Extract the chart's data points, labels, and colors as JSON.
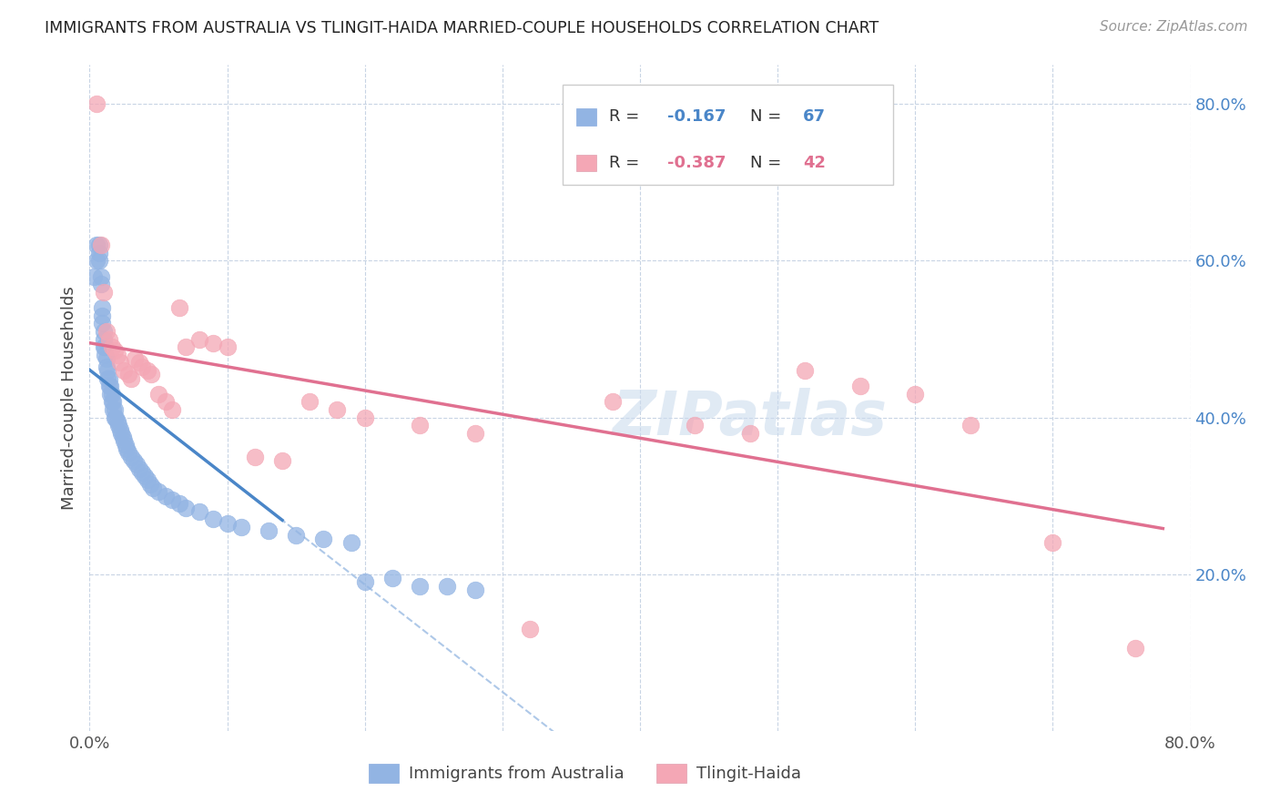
{
  "title": "IMMIGRANTS FROM AUSTRALIA VS TLINGIT-HAIDA MARRIED-COUPLE HOUSEHOLDS CORRELATION CHART",
  "source": "Source: ZipAtlas.com",
  "ylabel": "Married-couple Households",
  "xlim": [
    0.0,
    0.8
  ],
  "ylim": [
    0.0,
    0.85
  ],
  "color_blue": "#92b4e3",
  "color_pink": "#f4a7b5",
  "trendline_blue_color": "#4a86c8",
  "trendline_pink_color": "#e07090",
  "trendline_dashed_color": "#aec8e8",
  "watermark": "ZIPatlas",
  "grid_color": "#c8d4e4",
  "background_color": "#ffffff",
  "blue_x": [
    0.003,
    0.005,
    0.005,
    0.007,
    0.007,
    0.007,
    0.008,
    0.008,
    0.009,
    0.009,
    0.009,
    0.01,
    0.01,
    0.01,
    0.011,
    0.011,
    0.012,
    0.012,
    0.013,
    0.013,
    0.014,
    0.014,
    0.015,
    0.015,
    0.016,
    0.016,
    0.017,
    0.017,
    0.018,
    0.018,
    0.019,
    0.02,
    0.021,
    0.022,
    0.023,
    0.024,
    0.025,
    0.026,
    0.027,
    0.028,
    0.03,
    0.032,
    0.034,
    0.036,
    0.038,
    0.04,
    0.042,
    0.044,
    0.046,
    0.05,
    0.055,
    0.06,
    0.065,
    0.07,
    0.08,
    0.09,
    0.1,
    0.11,
    0.13,
    0.15,
    0.17,
    0.19,
    0.2,
    0.22,
    0.24,
    0.26,
    0.28
  ],
  "blue_y": [
    0.58,
    0.62,
    0.6,
    0.62,
    0.61,
    0.6,
    0.58,
    0.57,
    0.54,
    0.53,
    0.52,
    0.51,
    0.5,
    0.49,
    0.49,
    0.48,
    0.475,
    0.465,
    0.46,
    0.45,
    0.45,
    0.44,
    0.44,
    0.43,
    0.43,
    0.42,
    0.42,
    0.41,
    0.41,
    0.4,
    0.4,
    0.395,
    0.39,
    0.385,
    0.38,
    0.375,
    0.37,
    0.365,
    0.36,
    0.355,
    0.35,
    0.345,
    0.34,
    0.335,
    0.33,
    0.325,
    0.32,
    0.315,
    0.31,
    0.305,
    0.3,
    0.295,
    0.29,
    0.285,
    0.28,
    0.27,
    0.265,
    0.26,
    0.255,
    0.25,
    0.245,
    0.24,
    0.19,
    0.195,
    0.185,
    0.185,
    0.18
  ],
  "pink_x": [
    0.005,
    0.008,
    0.01,
    0.012,
    0.014,
    0.016,
    0.018,
    0.02,
    0.022,
    0.025,
    0.028,
    0.03,
    0.033,
    0.036,
    0.038,
    0.042,
    0.045,
    0.05,
    0.055,
    0.06,
    0.065,
    0.07,
    0.08,
    0.09,
    0.1,
    0.12,
    0.14,
    0.16,
    0.18,
    0.2,
    0.24,
    0.28,
    0.32,
    0.38,
    0.44,
    0.48,
    0.52,
    0.56,
    0.6,
    0.64,
    0.7,
    0.76
  ],
  "pink_y": [
    0.8,
    0.62,
    0.56,
    0.51,
    0.5,
    0.49,
    0.485,
    0.48,
    0.47,
    0.46,
    0.455,
    0.45,
    0.475,
    0.47,
    0.465,
    0.46,
    0.455,
    0.43,
    0.42,
    0.41,
    0.54,
    0.49,
    0.5,
    0.495,
    0.49,
    0.35,
    0.345,
    0.42,
    0.41,
    0.4,
    0.39,
    0.38,
    0.13,
    0.42,
    0.39,
    0.38,
    0.46,
    0.44,
    0.43,
    0.39,
    0.24,
    0.105
  ]
}
